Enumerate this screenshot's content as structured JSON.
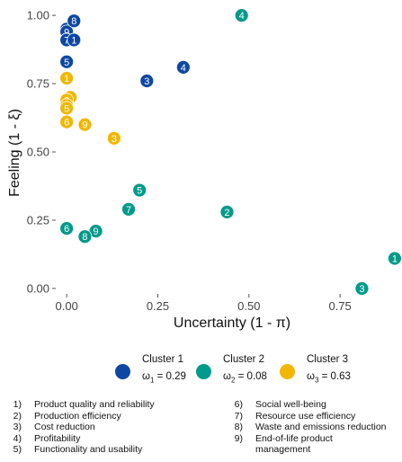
{
  "chart_data": {
    "type": "scatter",
    "xlabel": "Uncertainty (1 - π)",
    "ylabel": "Feeling (1 - ξ)",
    "xlim": [
      -0.03,
      0.92
    ],
    "ylim": [
      -0.02,
      1.03
    ],
    "xticks": [
      0.0,
      0.25,
      0.5,
      0.75
    ],
    "yticks": [
      0.0,
      0.25,
      0.5,
      0.75,
      1.0
    ],
    "x_tick_labels": [
      "0.00",
      "0.25",
      "0.50",
      "0.75"
    ],
    "y_tick_labels": [
      "0.00",
      "0.25",
      "0.50",
      "0.75",
      "1.00"
    ],
    "grid": false,
    "legend_position": "bottom",
    "series": [
      {
        "name": "Cluster 1",
        "weight_symbol": "ω",
        "weight_index": "1",
        "weight_value": "= 0.29",
        "color": "#0D47A1",
        "points": [
          {
            "x": 0.0,
            "y": 0.95,
            "label": "6"
          },
          {
            "x": 0.0,
            "y": 0.94,
            "label": "9"
          },
          {
            "x": 0.02,
            "y": 0.98,
            "label": "8"
          },
          {
            "x": 0.0,
            "y": 0.91,
            "label": "2"
          },
          {
            "x": 0.0,
            "y": 0.91,
            "label": "7"
          },
          {
            "x": 0.02,
            "y": 0.91,
            "label": "1"
          },
          {
            "x": 0.0,
            "y": 0.83,
            "label": "5"
          },
          {
            "x": 0.32,
            "y": 0.81,
            "label": "4"
          },
          {
            "x": 0.22,
            "y": 0.76,
            "label": "3"
          }
        ]
      },
      {
        "name": "Cluster 2",
        "weight_symbol": "ω",
        "weight_index": "2",
        "weight_value": "= 0.08",
        "color": "#009A8A",
        "points": [
          {
            "x": 0.48,
            "y": 1.0,
            "label": "4"
          },
          {
            "x": 0.2,
            "y": 0.36,
            "label": "5"
          },
          {
            "x": 0.17,
            "y": 0.29,
            "label": "7"
          },
          {
            "x": 0.44,
            "y": 0.28,
            "label": "2"
          },
          {
            "x": 0.0,
            "y": 0.22,
            "label": "6"
          },
          {
            "x": 0.08,
            "y": 0.21,
            "label": "9"
          },
          {
            "x": 0.05,
            "y": 0.19,
            "label": "8"
          },
          {
            "x": 0.9,
            "y": 0.11,
            "label": "1"
          },
          {
            "x": 0.81,
            "y": 0.0,
            "label": "3"
          }
        ]
      },
      {
        "name": "Cluster 3",
        "weight_symbol": "ω",
        "weight_index": "3",
        "weight_value": "= 0.63",
        "color": "#F2B705",
        "points": [
          {
            "x": 0.0,
            "y": 0.77,
            "label": "1"
          },
          {
            "x": 0.01,
            "y": 0.7,
            "label": "4"
          },
          {
            "x": 0.0,
            "y": 0.69,
            "label": "2"
          },
          {
            "x": 0.0,
            "y": 0.67,
            "label": "7"
          },
          {
            "x": 0.0,
            "y": 0.66,
            "label": "5"
          },
          {
            "x": 0.0,
            "y": 0.61,
            "label": "6"
          },
          {
            "x": 0.05,
            "y": 0.6,
            "label": "9"
          },
          {
            "x": 0.13,
            "y": 0.55,
            "label": "3"
          }
        ]
      }
    ],
    "annotations_left": [
      {
        "num": "1)",
        "text": "Product quality and reliability"
      },
      {
        "num": "2)",
        "text": "Production efficiency"
      },
      {
        "num": "3)",
        "text": "Cost reduction"
      },
      {
        "num": "4)",
        "text": "Profitability"
      },
      {
        "num": "5)",
        "text": "Functionality and usability"
      }
    ],
    "annotations_right": [
      {
        "num": "6)",
        "text": "Social well-being"
      },
      {
        "num": "7)",
        "text": "Resource use efficiency"
      },
      {
        "num": "8)",
        "text": "Waste and emissions reduction"
      },
      {
        "num": "9)",
        "text": "End-of-life product"
      },
      {
        "num": "",
        "text": "management"
      }
    ]
  }
}
